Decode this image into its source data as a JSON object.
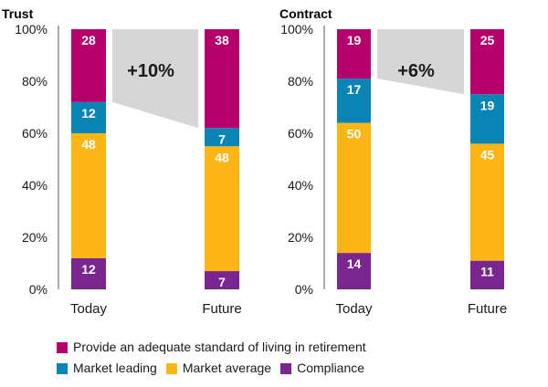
{
  "colors": {
    "provide": "#b5006b",
    "leading": "#0a84b4",
    "average": "#fbb616",
    "compliance": "#7b2590",
    "gap": "#d6d6d7"
  },
  "legend": [
    {
      "key": "provide",
      "label": "Provide an adequate standard of living in retirement",
      "row": 0
    },
    {
      "key": "leading",
      "label": "Market leading",
      "row": 1
    },
    {
      "key": "average",
      "label": "Market average",
      "row": 1
    },
    {
      "key": "compliance",
      "label": "Compliance",
      "row": 1
    }
  ],
  "chart_data": [
    {
      "type": "bar",
      "stacked": true,
      "title": "Trust",
      "categories": [
        "Today",
        "Future"
      ],
      "ylim": [
        0,
        100
      ],
      "yticks": [
        "0%",
        "20%",
        "40%",
        "60%",
        "80%",
        "100%"
      ],
      "series": [
        {
          "name": "Compliance",
          "key": "compliance",
          "values": [
            12,
            7
          ]
        },
        {
          "name": "Market average",
          "key": "average",
          "values": [
            48,
            48
          ]
        },
        {
          "name": "Market leading",
          "key": "leading",
          "values": [
            12,
            7
          ]
        },
        {
          "name": "Provide an adequate standard of living in retirement",
          "key": "provide",
          "values": [
            28,
            38
          ]
        }
      ],
      "annotation": "+10%"
    },
    {
      "type": "bar",
      "stacked": true,
      "title": "Contract",
      "categories": [
        "Today",
        "Future"
      ],
      "ylim": [
        0,
        100
      ],
      "yticks": [
        "0%",
        "20%",
        "40%",
        "60%",
        "80%",
        "100%"
      ],
      "series": [
        {
          "name": "Compliance",
          "key": "compliance",
          "values": [
            14,
            11
          ]
        },
        {
          "name": "Market average",
          "key": "average",
          "values": [
            50,
            45
          ]
        },
        {
          "name": "Market leading",
          "key": "leading",
          "values": [
            17,
            19
          ]
        },
        {
          "name": "Provide an adequate standard of living in retirement",
          "key": "provide",
          "values": [
            19,
            25
          ]
        }
      ],
      "annotation": "+6%"
    }
  ]
}
